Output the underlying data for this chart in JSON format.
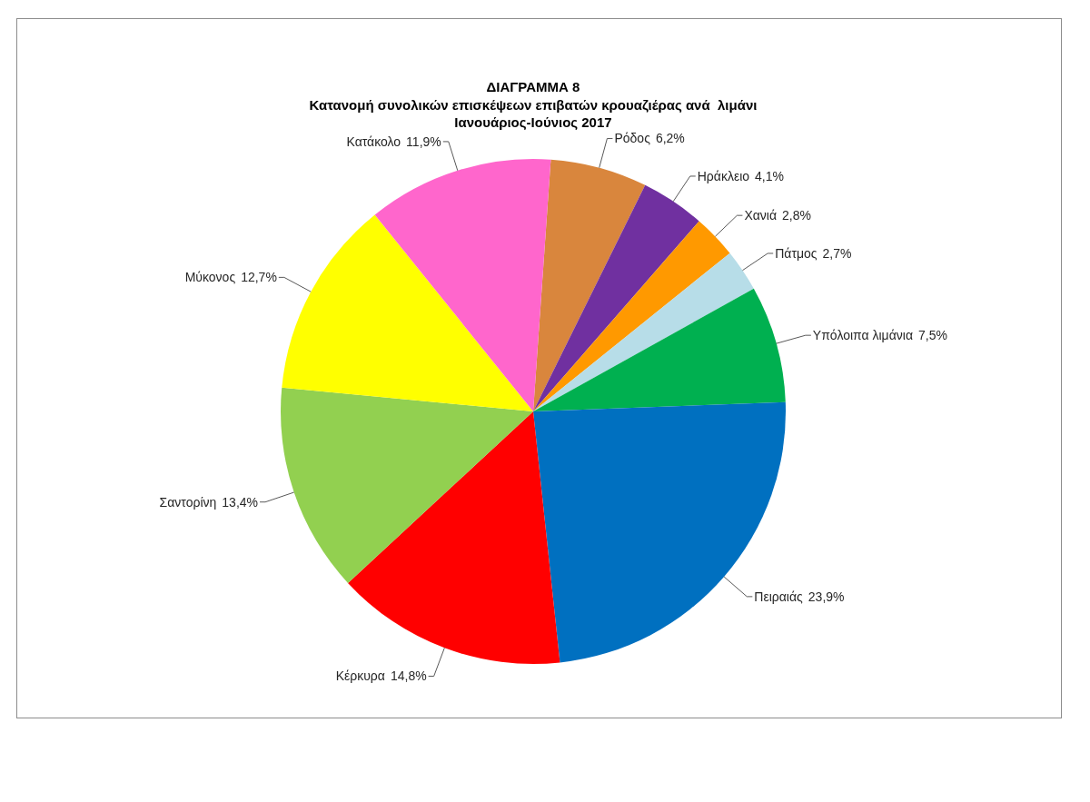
{
  "chart_data": {
    "type": "pie",
    "title": "ΔΙΑΓΡΑΜΜΑ 8",
    "subtitle": "Κατανομή συνολικών επισκέψεων επιβατών κρουαζιέρας ανά  λιμάνι\nΙανουάριος-Ιούνιος 2017",
    "categories": [
      "Ρόδος",
      "Ηράκλειο",
      "Χανιά",
      "Πάτμος",
      "Υπόλοιπα λιμάνια",
      "Πειραιάς",
      "Κέρκυρα",
      "Σαντορίνη",
      "Μύκονος",
      "Κατάκολο"
    ],
    "values": [
      6.2,
      4.1,
      2.8,
      2.7,
      7.5,
      23.9,
      14.8,
      13.4,
      12.7,
      11.9
    ],
    "value_labels": [
      "6,2%",
      "4,1%",
      "2,8%",
      "2,7%",
      "7,5%",
      "23,9%",
      "14,8%",
      "13,4%",
      "12,7%",
      "11,9%"
    ],
    "colors": [
      "#d9863d",
      "#7030a0",
      "#ff9900",
      "#b7dde8",
      "#00b050",
      "#0070c0",
      "#ff0000",
      "#92d050",
      "#ffff00",
      "#ff66cc"
    ]
  }
}
